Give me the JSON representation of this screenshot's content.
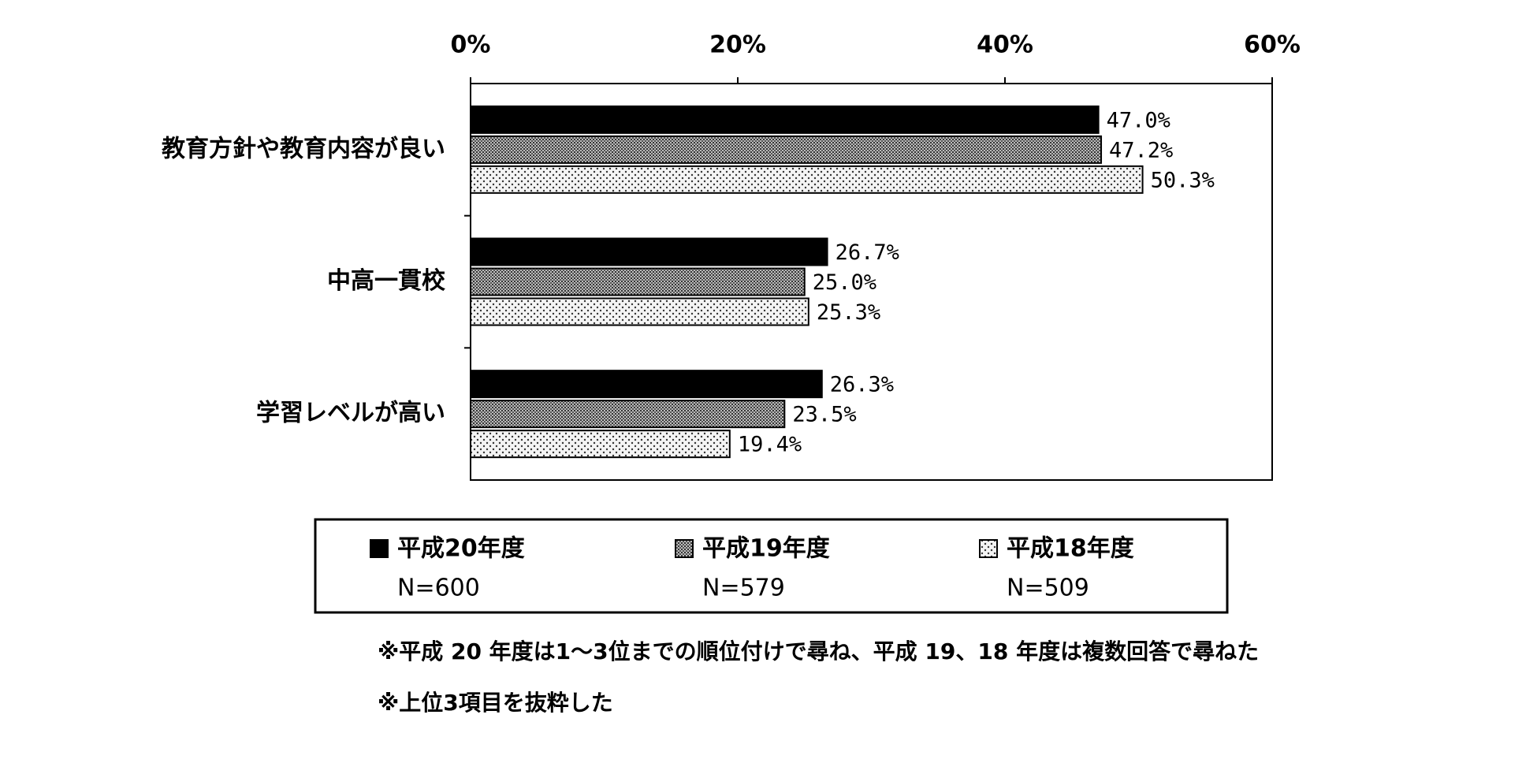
{
  "chart_data": {
    "type": "bar",
    "orientation": "horizontal",
    "categories": [
      "教育方針や教育内容が良い",
      "中高一貫校",
      "学習レベルが高い"
    ],
    "series": [
      {
        "name": "平成20年度",
        "n": "N=600",
        "color": "#000000",
        "pattern": "solid",
        "values": [
          47.0,
          26.7,
          26.3
        ],
        "value_labels": [
          "47.0%",
          "26.7%",
          "26.3%"
        ]
      },
      {
        "name": "平成19年度",
        "n": "N=579",
        "color": "#888888",
        "pattern": "grid",
        "values": [
          47.2,
          25.0,
          23.5
        ],
        "value_labels": [
          "47.2%",
          "25.0%",
          "23.5%"
        ]
      },
      {
        "name": "平成18年度",
        "n": "N=509",
        "color": "#e8e8e8",
        "pattern": "dots",
        "values": [
          50.3,
          25.3,
          19.4
        ],
        "value_labels": [
          "50.3%",
          "25.3%",
          "19.4%"
        ]
      }
    ],
    "xlim": [
      0,
      60
    ],
    "xticks": [
      {
        "value": 0,
        "label": "0%"
      },
      {
        "value": 20,
        "label": "20%"
      },
      {
        "value": 40,
        "label": "40%"
      },
      {
        "value": 60,
        "label": "60%"
      }
    ],
    "notes": [
      "※平成 20 年度は1～3位までの順位付けで尋ね、平成 19、18 年度は複数回答で尋ねた",
      "※上位3項目を抜粋した"
    ]
  }
}
